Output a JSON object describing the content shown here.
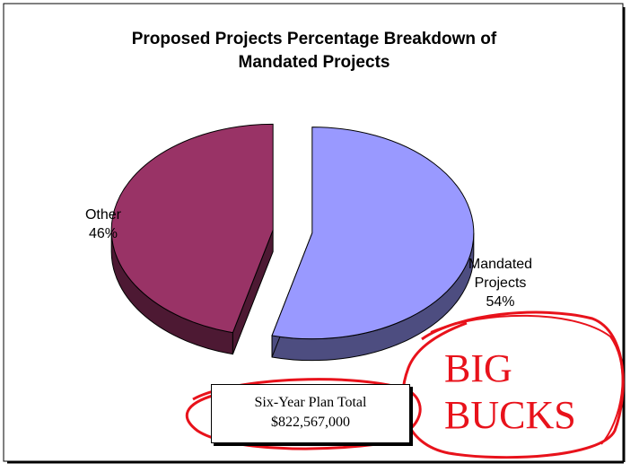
{
  "chart_data": {
    "type": "pie",
    "title": "Proposed Projects Percentage Breakdown of Mandated Projects",
    "title_lines": [
      "Proposed Projects Percentage Breakdown of",
      "Mandated Projects"
    ],
    "slices": [
      {
        "name": "Other",
        "value": 46,
        "label_line1": "Other",
        "label_line2": "46%",
        "color": "#993366",
        "side_color": "#4d1933"
      },
      {
        "name": "Mandated Projects",
        "value": 54,
        "label_line1": "Mandated",
        "label_line2": "Projects",
        "label_line3": "54%",
        "color": "#9999ff",
        "side_color": "#4d4d80"
      }
    ],
    "exploded": true,
    "three_d": true
  },
  "total_box": {
    "label": "Six-Year Plan Total",
    "amount": "$822,567,000"
  },
  "annotation": {
    "line1": "BIG",
    "line2": "BUCKS",
    "color": "#e8121b"
  }
}
